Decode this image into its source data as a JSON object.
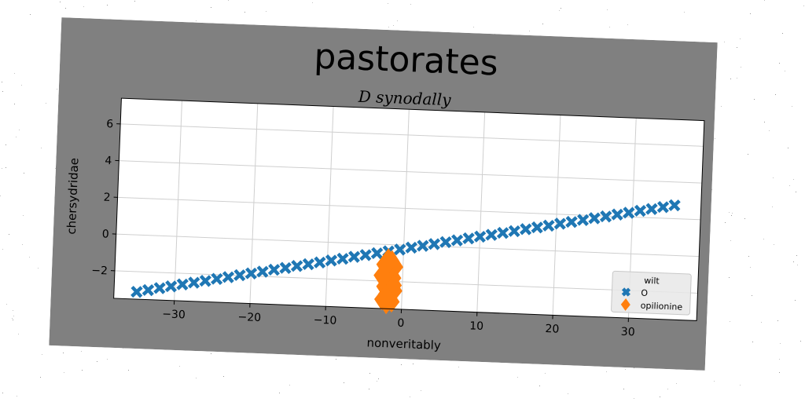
{
  "chart_data": {
    "type": "scatter",
    "title": "pastorates",
    "subtitle": "D synodally",
    "xlabel": "nonveritably",
    "ylabel": "chersydridae",
    "xlim": [
      -38,
      39
    ],
    "ylim": [
      -3.5,
      7.4
    ],
    "xticks": [
      -30,
      -20,
      -10,
      0,
      10,
      20,
      30
    ],
    "xtick_labels": [
      "−30",
      "−20",
      "−10",
      "0",
      "10",
      "20",
      "30"
    ],
    "yticks": [
      -2,
      0,
      2,
      4,
      6
    ],
    "ytick_labels": [
      "−2",
      "0",
      "2",
      "4",
      "6"
    ],
    "grid": true,
    "legend": {
      "title": "wilt",
      "placement": "bottom-right"
    },
    "series": [
      {
        "name": "O",
        "marker": "x",
        "color": "#1f77b4",
        "x": [
          -35,
          -33.5,
          -32,
          -30.5,
          -29,
          -27.5,
          -26,
          -24.5,
          -23,
          -21.5,
          -20,
          -18.5,
          -17,
          -15.5,
          -14,
          -12.5,
          -11,
          -9.5,
          -8,
          -6.5,
          -5,
          -3.5,
          -2,
          -0.5,
          1,
          2.5,
          4,
          5.5,
          7,
          8.5,
          10,
          11.5,
          13,
          14.5,
          16,
          17.5,
          19,
          20.5,
          22,
          23.5,
          25,
          26.5,
          28,
          29.5,
          31,
          32.5,
          34,
          35.5
        ],
        "y": [
          -3.1,
          -2.98,
          -2.85,
          -2.73,
          -2.6,
          -2.48,
          -2.36,
          -2.23,
          -2.11,
          -1.98,
          -1.86,
          -1.74,
          -1.61,
          -1.49,
          -1.36,
          -1.24,
          -1.12,
          -0.99,
          -0.87,
          -0.74,
          -0.62,
          -0.5,
          -0.37,
          -0.25,
          -0.12,
          0.0,
          0.12,
          0.25,
          0.37,
          0.5,
          0.62,
          0.74,
          0.87,
          0.99,
          1.12,
          1.24,
          1.36,
          1.49,
          1.61,
          1.74,
          1.86,
          1.98,
          2.11,
          2.23,
          2.36,
          2.48,
          2.61,
          2.73
        ]
      },
      {
        "name": "opilionine",
        "marker": "diamond",
        "color": "#ff7f0e",
        "x": [
          -2.0,
          -1.5,
          -2.5,
          -1.0,
          -2.2,
          -1.8,
          -2.8,
          -1.2,
          -2.0,
          -1.6,
          -2.4,
          -1.0,
          -2.1,
          -1.7,
          -2.6,
          -1.3,
          -2.0,
          -1.5,
          -2.3,
          -1.1
        ],
        "y": [
          -0.8,
          -0.9,
          -1.1,
          -1.2,
          -1.4,
          -1.5,
          -1.7,
          -1.8,
          -2.0,
          -2.1,
          -2.3,
          -2.5,
          -2.7,
          -2.9,
          -3.0,
          -3.1,
          -3.2,
          -2.6,
          -1.0,
          -2.2
        ]
      }
    ]
  }
}
